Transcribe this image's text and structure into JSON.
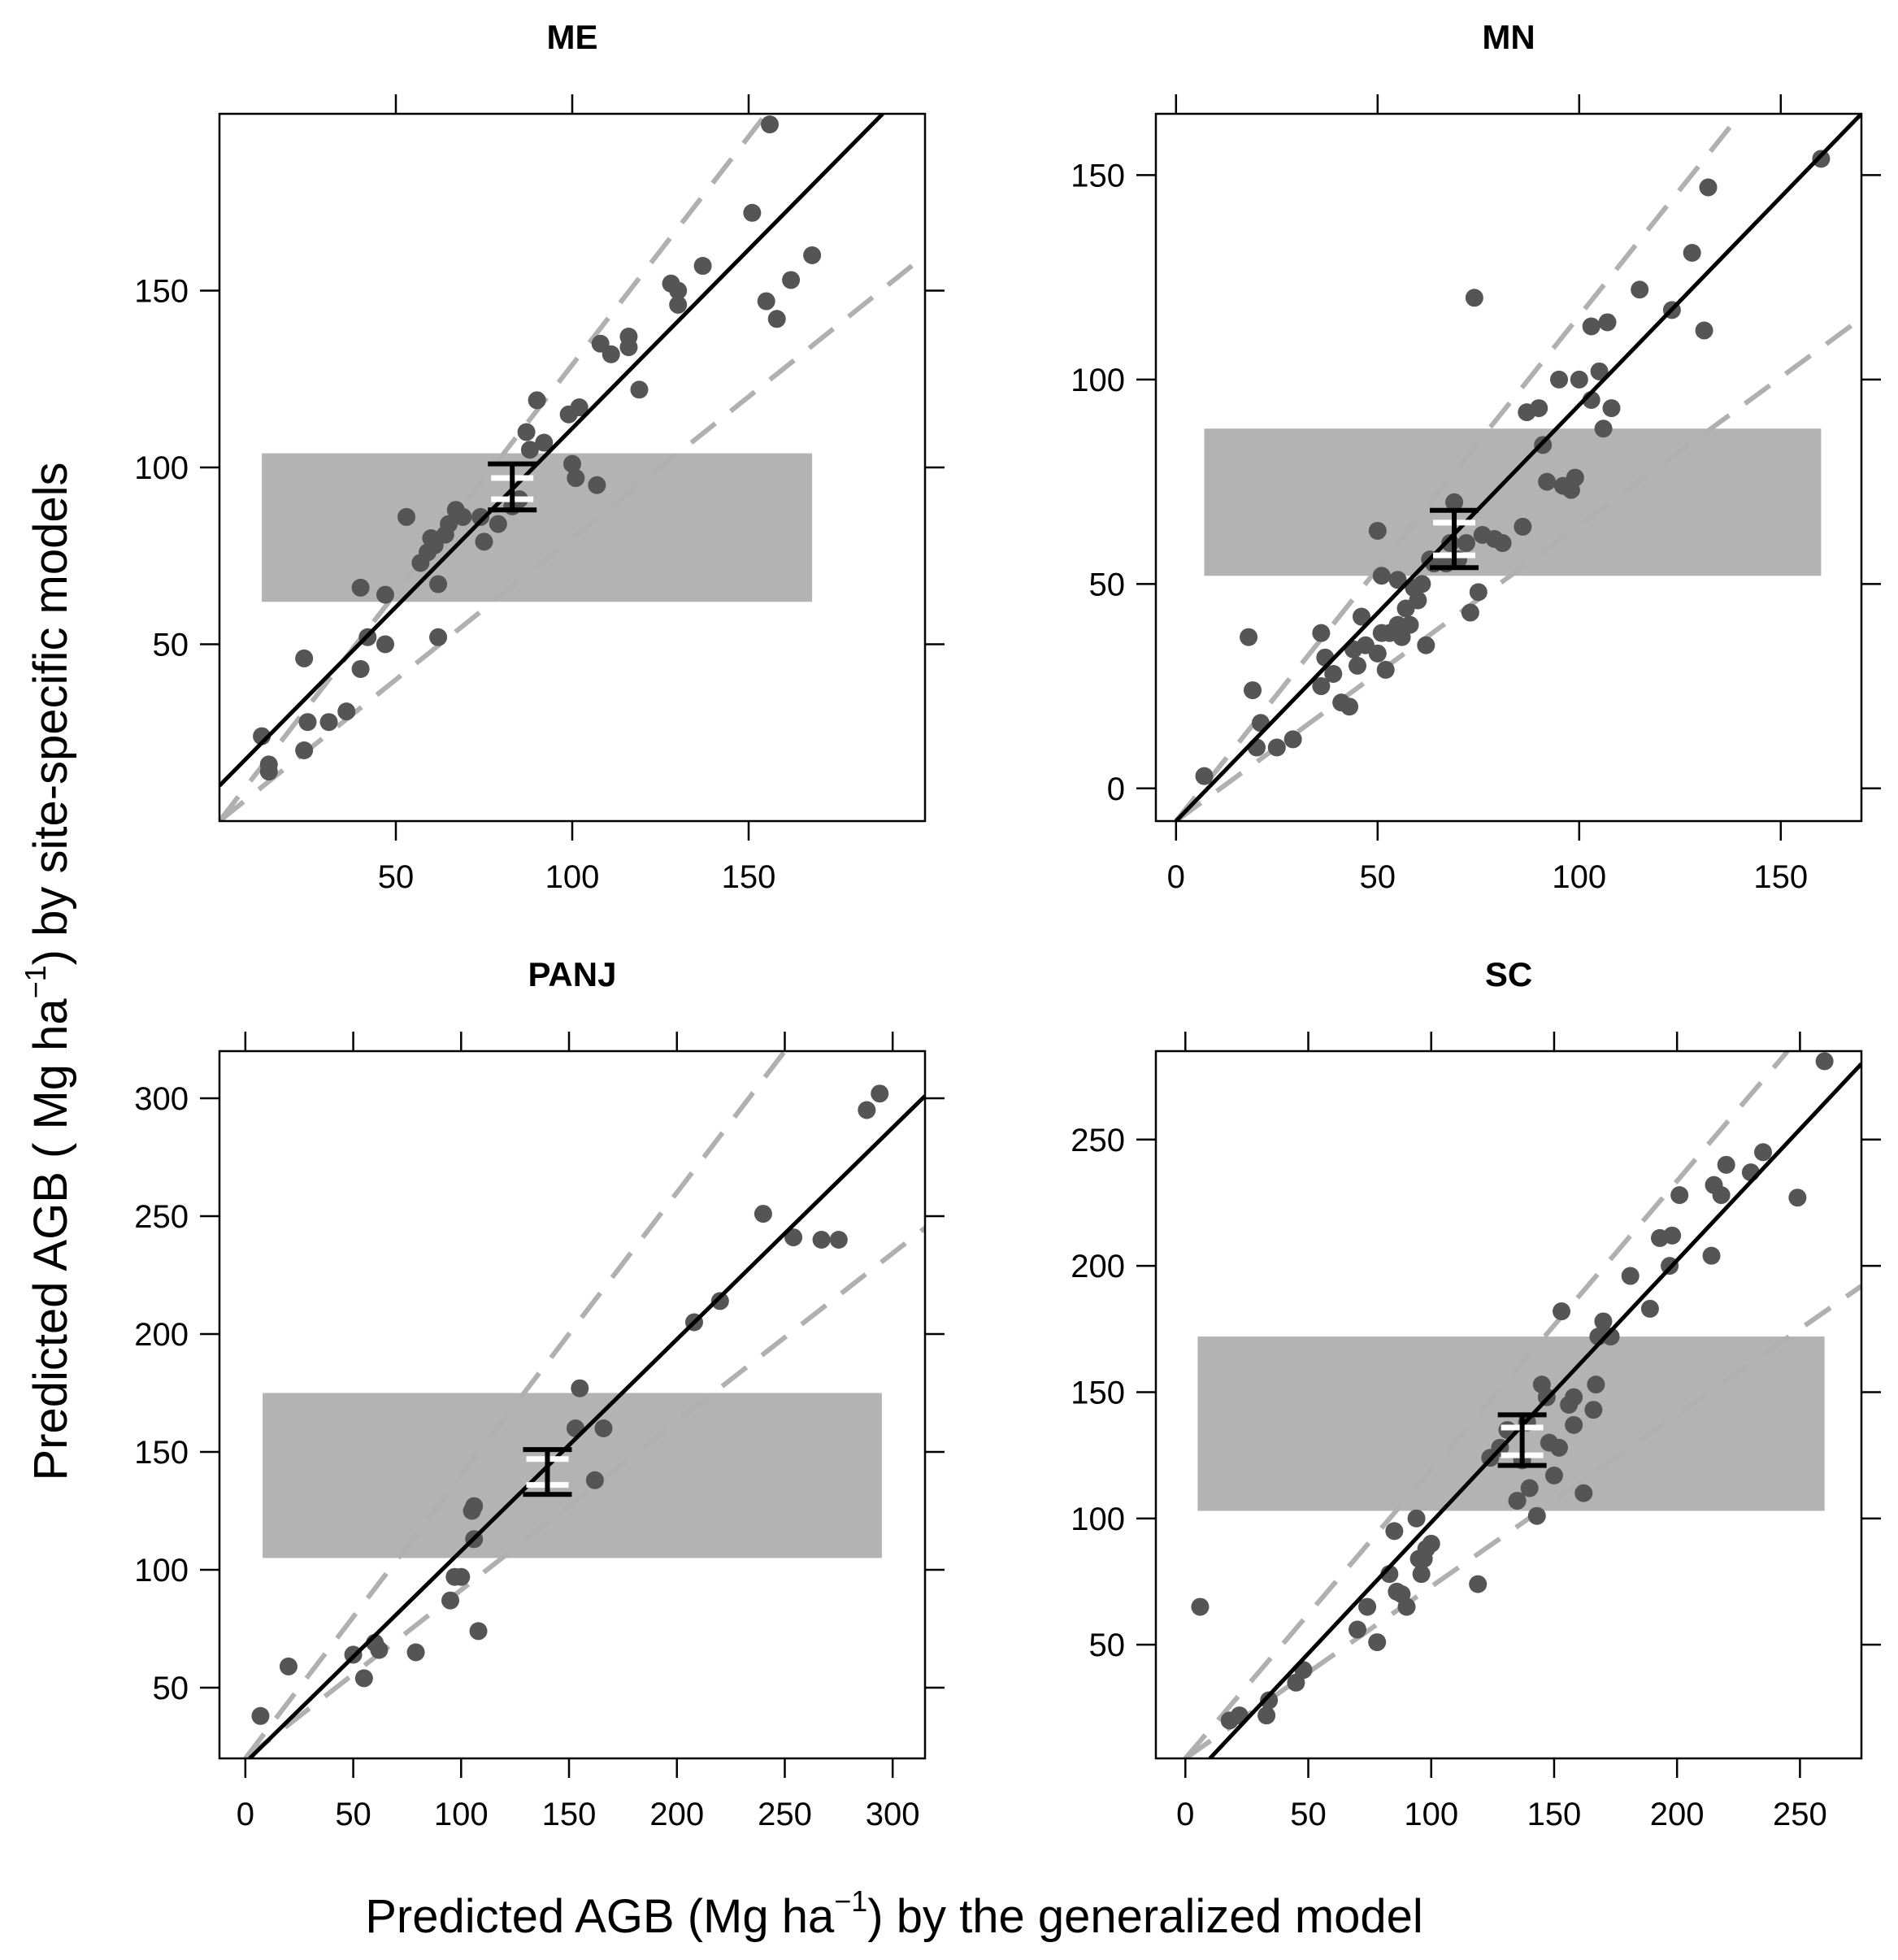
{
  "figure": {
    "xlabel_pre": "Predicted AGB (Mg ha",
    "xlabel_sup": "−1",
    "xlabel_post": ") by the generalized model",
    "ylabel_pre": "Predicted AGB ( Mg ha",
    "ylabel_sup": "−1",
    "ylabel_post": ") by site-specific models"
  },
  "colors": {
    "points": "#555555",
    "line": "#000000",
    "dashed": "#b0b0b0",
    "band": "#b3b3b3",
    "errorbar_inner": "#ffffff"
  },
  "chart_data": [
    {
      "type": "scatter",
      "title": "ME",
      "xlim": [
        0,
        200
      ],
      "ylim": [
        0,
        200
      ],
      "xticks": [
        50,
        100,
        150
      ],
      "yticks": [
        50,
        100,
        150
      ],
      "band": {
        "x": [
          12,
          168
        ],
        "y": [
          62,
          104
        ]
      },
      "line": [
        [
          0,
          10
        ],
        [
          188,
          200
        ]
      ],
      "dashed_upper": [
        [
          0,
          0
        ],
        [
          155,
          200
        ]
      ],
      "dashed_lower": [
        [
          0,
          0
        ],
        [
          200,
          160
        ]
      ],
      "mean": {
        "x": 83,
        "y": 94,
        "ci": [
          88,
          101
        ],
        "inner": [
          91,
          97
        ]
      },
      "points": [
        [
          12,
          24
        ],
        [
          14,
          16
        ],
        [
          14,
          14
        ],
        [
          24,
          46
        ],
        [
          24,
          20
        ],
        [
          25,
          28
        ],
        [
          31,
          28
        ],
        [
          36,
          31
        ],
        [
          40,
          66
        ],
        [
          40,
          43
        ],
        [
          42,
          52
        ],
        [
          47,
          64
        ],
        [
          47,
          50
        ],
        [
          53,
          86
        ],
        [
          57,
          73
        ],
        [
          59,
          76
        ],
        [
          60,
          80
        ],
        [
          61,
          78
        ],
        [
          62,
          67
        ],
        [
          62,
          52
        ],
        [
          64,
          81
        ],
        [
          65,
          84
        ],
        [
          67,
          88
        ],
        [
          69,
          86
        ],
        [
          74,
          86
        ],
        [
          75,
          79
        ],
        [
          79,
          84
        ],
        [
          83,
          89
        ],
        [
          85,
          91
        ],
        [
          87,
          110
        ],
        [
          88,
          105
        ],
        [
          90,
          119
        ],
        [
          92,
          107
        ],
        [
          99,
          115
        ],
        [
          100,
          101
        ],
        [
          101,
          97
        ],
        [
          102,
          117
        ],
        [
          107,
          95
        ],
        [
          108,
          135
        ],
        [
          111,
          132
        ],
        [
          116,
          137
        ],
        [
          116,
          134
        ],
        [
          119,
          122
        ],
        [
          128,
          152
        ],
        [
          130,
          146
        ],
        [
          130,
          150
        ],
        [
          137,
          157
        ],
        [
          151,
          172
        ],
        [
          155,
          147
        ],
        [
          156,
          197
        ],
        [
          158,
          142
        ],
        [
          162,
          153
        ],
        [
          168,
          160
        ]
      ]
    },
    {
      "type": "scatter",
      "title": "MN",
      "xlim": [
        -5,
        170
      ],
      "ylim": [
        -8,
        165
      ],
      "xticks": [
        0,
        50,
        100,
        150
      ],
      "yticks": [
        0,
        50,
        100,
        150
      ],
      "band": {
        "x": [
          7,
          160
        ],
        "y": [
          52,
          88
        ]
      },
      "line": [
        [
          0,
          -8
        ],
        [
          170,
          165
        ]
      ],
      "dashed_upper": [
        [
          0,
          -8
        ],
        [
          140,
          165
        ]
      ],
      "dashed_lower": [
        [
          0,
          -8
        ],
        [
          170,
          115
        ]
      ],
      "mean": {
        "x": 69,
        "y": 61,
        "ci": [
          54,
          68
        ],
        "inner": [
          57,
          65
        ]
      },
      "points": [
        [
          7,
          3
        ],
        [
          18,
          37
        ],
        [
          19,
          24
        ],
        [
          20,
          10
        ],
        [
          21,
          16
        ],
        [
          25,
          10
        ],
        [
          29,
          12
        ],
        [
          36,
          38
        ],
        [
          36,
          25
        ],
        [
          37,
          32
        ],
        [
          39,
          28
        ],
        [
          41,
          21
        ],
        [
          43,
          20
        ],
        [
          44,
          34
        ],
        [
          45,
          30
        ],
        [
          46,
          42
        ],
        [
          47,
          35
        ],
        [
          50,
          33
        ],
        [
          50,
          63
        ],
        [
          51,
          52
        ],
        [
          51,
          38
        ],
        [
          52,
          29
        ],
        [
          53,
          38
        ],
        [
          55,
          51
        ],
        [
          55,
          40
        ],
        [
          56,
          37
        ],
        [
          57,
          44
        ],
        [
          58,
          40
        ],
        [
          59,
          49
        ],
        [
          60,
          46
        ],
        [
          61,
          50
        ],
        [
          62,
          35
        ],
        [
          63,
          56
        ],
        [
          64,
          55
        ],
        [
          67,
          55
        ],
        [
          68,
          60
        ],
        [
          69,
          70
        ],
        [
          70,
          56
        ],
        [
          72,
          60
        ],
        [
          73,
          43
        ],
        [
          74,
          120
        ],
        [
          75,
          48
        ],
        [
          76,
          62
        ],
        [
          79,
          61
        ],
        [
          81,
          60
        ],
        [
          86,
          64
        ],
        [
          87,
          92
        ],
        [
          90,
          93
        ],
        [
          91,
          84
        ],
        [
          92,
          75
        ],
        [
          95,
          100
        ],
        [
          96,
          74
        ],
        [
          98,
          73
        ],
        [
          99,
          76
        ],
        [
          100,
          100
        ],
        [
          103,
          95
        ],
        [
          103,
          113
        ],
        [
          105,
          102
        ],
        [
          106,
          88
        ],
        [
          108,
          93
        ],
        [
          107,
          114
        ],
        [
          115,
          122
        ],
        [
          123,
          117
        ],
        [
          128,
          131
        ],
        [
          131,
          112
        ],
        [
          132,
          147
        ],
        [
          160,
          154
        ]
      ]
    },
    {
      "type": "scatter",
      "title": "PANJ",
      "xlim": [
        -12,
        315
      ],
      "ylim": [
        20,
        320
      ],
      "xticks": [
        0,
        50,
        100,
        150,
        200,
        250,
        300
      ],
      "yticks": [
        50,
        100,
        150,
        200,
        250,
        300
      ],
      "band": {
        "x": [
          8,
          295
        ],
        "y": [
          105,
          175
        ]
      },
      "line": [
        [
          2,
          20
        ],
        [
          315,
          301
        ]
      ],
      "dashed_upper": [
        [
          0,
          20
        ],
        [
          250,
          320
        ]
      ],
      "dashed_lower": [
        [
          0,
          20
        ],
        [
          315,
          245
        ]
      ],
      "mean": {
        "x": 140,
        "y": 143,
        "ci": [
          132,
          151
        ],
        "inner": [
          136,
          147
        ]
      },
      "points": [
        [
          7,
          38
        ],
        [
          20,
          59
        ],
        [
          50,
          64
        ],
        [
          55,
          54
        ],
        [
          60,
          69
        ],
        [
          62,
          66
        ],
        [
          79,
          65
        ],
        [
          95,
          87
        ],
        [
          97,
          97
        ],
        [
          100,
          97
        ],
        [
          105,
          125
        ],
        [
          106,
          127
        ],
        [
          106,
          113
        ],
        [
          108,
          74
        ],
        [
          153,
          160
        ],
        [
          155,
          177
        ],
        [
          162,
          138
        ],
        [
          166,
          160
        ],
        [
          208,
          205
        ],
        [
          220,
          214
        ],
        [
          240,
          251
        ],
        [
          254,
          241
        ],
        [
          267,
          240
        ],
        [
          275,
          240
        ],
        [
          288,
          295
        ],
        [
          294,
          302
        ]
      ]
    },
    {
      "type": "scatter",
      "title": "SC",
      "xlim": [
        -12,
        275
      ],
      "ylim": [
        5,
        285
      ],
      "xticks": [
        0,
        50,
        100,
        150,
        200,
        250
      ],
      "yticks": [
        50,
        100,
        150,
        200,
        250
      ],
      "band": {
        "x": [
          5,
          260
        ],
        "y": [
          103,
          172
        ]
      },
      "line": [
        [
          10,
          5
        ],
        [
          275,
          280
        ]
      ],
      "dashed_upper": [
        [
          0,
          5
        ],
        [
          245,
          285
        ]
      ],
      "dashed_lower": [
        [
          0,
          5
        ],
        [
          275,
          192
        ]
      ],
      "mean": {
        "x": 137,
        "y": 131,
        "ci": [
          121,
          141
        ],
        "inner": [
          125,
          136
        ]
      },
      "points": [
        [
          6,
          65
        ],
        [
          18,
          20
        ],
        [
          22,
          22
        ],
        [
          33,
          22
        ],
        [
          34,
          28
        ],
        [
          45,
          35
        ],
        [
          48,
          40
        ],
        [
          70,
          56
        ],
        [
          74,
          65
        ],
        [
          78,
          51
        ],
        [
          83,
          78
        ],
        [
          85,
          95
        ],
        [
          86,
          71
        ],
        [
          88,
          70
        ],
        [
          90,
          65
        ],
        [
          94,
          100
        ],
        [
          95,
          84
        ],
        [
          96,
          78
        ],
        [
          97,
          84
        ],
        [
          98,
          88
        ],
        [
          100,
          90
        ],
        [
          119,
          74
        ],
        [
          124,
          124
        ],
        [
          128,
          128
        ],
        [
          131,
          135
        ],
        [
          135,
          107
        ],
        [
          137,
          123
        ],
        [
          139,
          138
        ],
        [
          140,
          112
        ],
        [
          143,
          101
        ],
        [
          145,
          153
        ],
        [
          147,
          148
        ],
        [
          148,
          130
        ],
        [
          150,
          117
        ],
        [
          152,
          128
        ],
        [
          153,
          182
        ],
        [
          156,
          145
        ],
        [
          158,
          148
        ],
        [
          158,
          137
        ],
        [
          162,
          110
        ],
        [
          166,
          143
        ],
        [
          167,
          153
        ],
        [
          168,
          172
        ],
        [
          170,
          178
        ],
        [
          173,
          172
        ],
        [
          181,
          196
        ],
        [
          189,
          183
        ],
        [
          193,
          211
        ],
        [
          197,
          200
        ],
        [
          198,
          212
        ],
        [
          201,
          228
        ],
        [
          214,
          204
        ],
        [
          215,
          232
        ],
        [
          218,
          228
        ],
        [
          220,
          240
        ],
        [
          230,
          237
        ],
        [
          235,
          245
        ],
        [
          249,
          227
        ],
        [
          260,
          281
        ]
      ]
    }
  ]
}
